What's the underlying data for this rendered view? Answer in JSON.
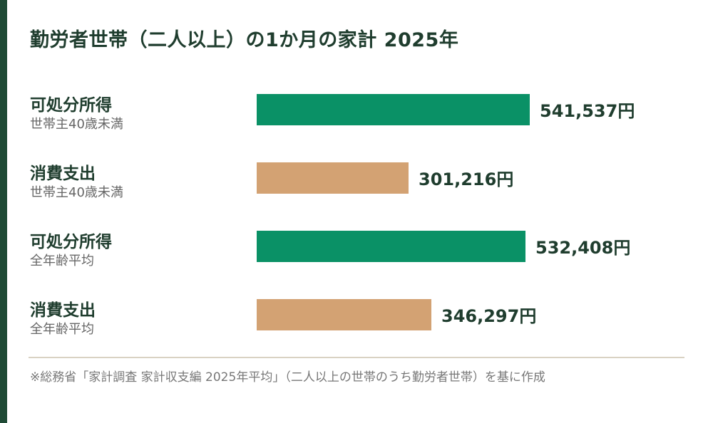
{
  "colors": {
    "accent": "#1f4a35",
    "income": "#0a9166",
    "spending": "#d3a273"
  },
  "chart_data": {
    "type": "bar",
    "orientation": "horizontal",
    "title": "勤労者世帯（二人以上）の1か月の家計 2025年",
    "unit": "円",
    "rows": [
      {
        "label": "可処分所得",
        "sublabel": "世帯主40歳未満",
        "value": 541537,
        "value_label": "541,537円",
        "kind": "income"
      },
      {
        "label": "消費支出",
        "sublabel": "世帯主40歳未満",
        "value": 301216,
        "value_label": "301,216円",
        "kind": "spending"
      },
      {
        "label": "可処分所得",
        "sublabel": "全年齢平均",
        "value": 532408,
        "value_label": "532,408円",
        "kind": "income"
      },
      {
        "label": "消費支出",
        "sublabel": "全年齢平均",
        "value": 346297,
        "value_label": "346,297円",
        "kind": "spending"
      }
    ],
    "source_note": "※総務省「家計調査 家計収支編 2025年平均」（二人以上の世帯のうち勤労者世帯）を基に作成",
    "grid": false,
    "legend": "none"
  }
}
